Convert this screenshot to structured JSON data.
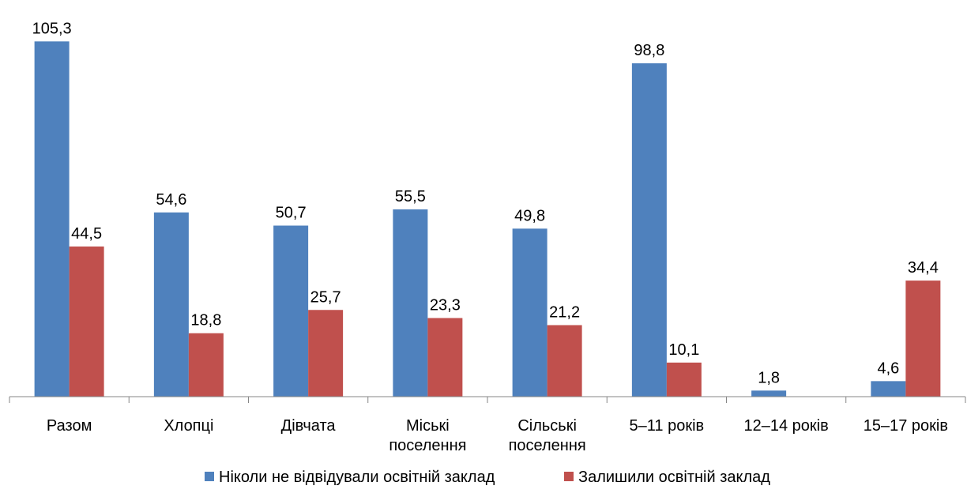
{
  "chart_data": {
    "type": "bar",
    "categories": [
      [
        "Разом"
      ],
      [
        "Хлопці"
      ],
      [
        "Дівчата"
      ],
      [
        "Міські",
        "поселення"
      ],
      [
        "Сільські",
        "поселення"
      ],
      [
        "5–11 років"
      ],
      [
        "12–14 років"
      ],
      [
        "15–17 років"
      ]
    ],
    "series": [
      {
        "name": "Ніколи не відвідували освітній заклад",
        "color": "#4F81BD",
        "values": [
          105.3,
          54.6,
          50.7,
          55.5,
          49.8,
          98.8,
          1.8,
          4.6
        ],
        "labels": [
          "105,3",
          "54,6",
          "50,7",
          "55,5",
          "49,8",
          "98,8",
          "1,8",
          "4,6"
        ]
      },
      {
        "name": "Залишили освітній заклад",
        "color": "#C0504D",
        "values": [
          44.5,
          18.8,
          25.7,
          23.3,
          21.2,
          10.1,
          0,
          34.4
        ],
        "labels": [
          "44,5",
          "18,8",
          "25,7",
          "23,3",
          "21,2",
          "10,1",
          "",
          "34,4"
        ]
      }
    ],
    "ylim": [
      0,
      110
    ],
    "grid": false,
    "legend_position": "bottom-center"
  }
}
